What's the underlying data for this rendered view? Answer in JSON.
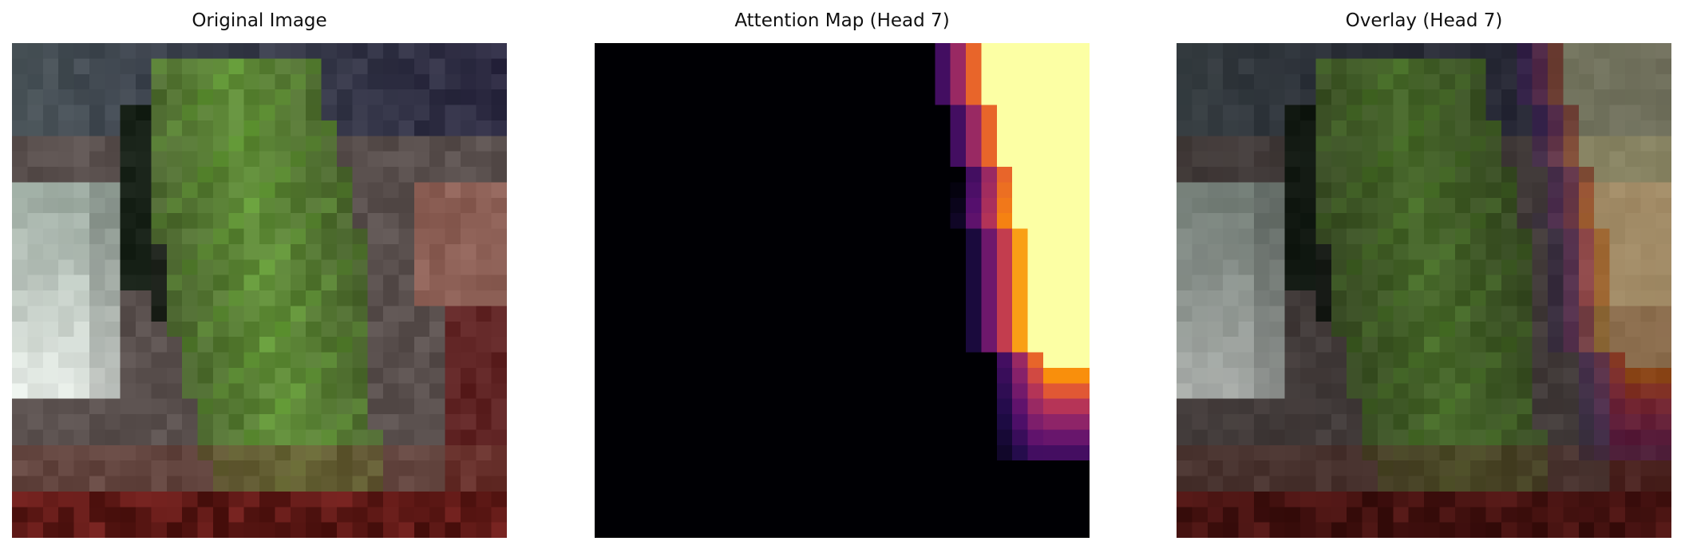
{
  "figure": {
    "panels": [
      {
        "title": "Original Image"
      },
      {
        "title": "Attention Map (Head 7)"
      },
      {
        "title": "Overlay (Head 7)"
      }
    ]
  },
  "colormap": "inferno"
}
